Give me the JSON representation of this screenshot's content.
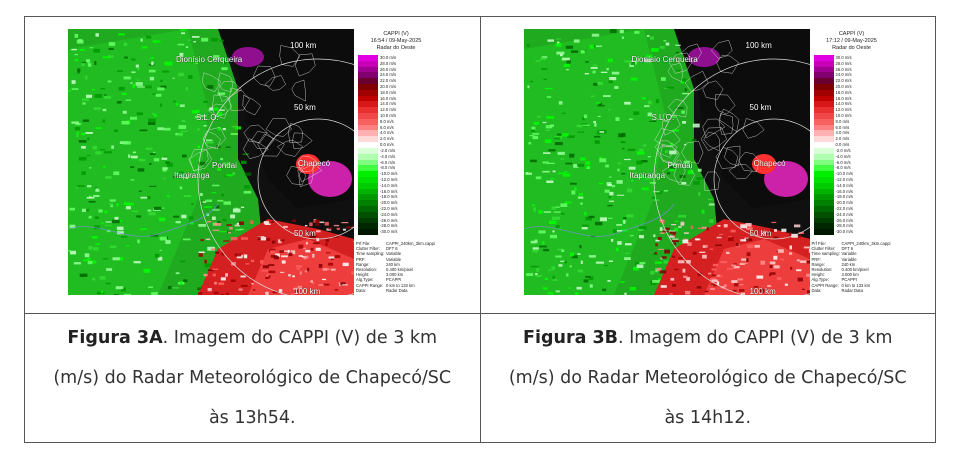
{
  "figures": [
    {
      "id": "A",
      "radar": {
        "title_line1": "CAPPI (V)",
        "title_line2": "16:54 / 09-May-2025",
        "title_line3": "Radar do Oeste",
        "rings": [
          "100 km",
          "50 km",
          "50 km",
          "100 km"
        ],
        "places": [
          "Dionísio Cerqueira",
          "S.L.O.",
          "Pondai",
          "Itapiranga",
          "Chapecó"
        ],
        "meta": [
          [
            "Prf File:",
            "CAPPI_240km_3km.cappi"
          ],
          [
            "Clutter Filter:",
            "DFT 6"
          ],
          [
            "Time sampling:",
            "Variable"
          ],
          [
            "PRF:",
            "Variable"
          ],
          [
            "Range:",
            "240 km"
          ],
          [
            "Resolution:",
            "0.400 km/pixel"
          ],
          [
            "Height:",
            "3.000 km"
          ],
          [
            "Alg.Type:",
            "PCAPPI"
          ],
          [
            "CAPPI Range:",
            "0 km to 133 km"
          ],
          [
            "Data:",
            "Radar Data"
          ]
        ]
      },
      "caption": {
        "bold": "Figura 3A",
        "text": ". Imagem do CAPPI (V) de 3 km (m/s) do Radar Meteorológico de Chapecó/SC às 13h54."
      }
    },
    {
      "id": "B",
      "radar": {
        "title_line1": "CAPPI (V)",
        "title_line2": "17:12 / 09-May-2025",
        "title_line3": "Radar do Oeste",
        "rings": [
          "100 km",
          "50 km",
          "50 km",
          "100 km"
        ],
        "places": [
          "Dionísio Cerqueira",
          "S.L.O.",
          "Pondai",
          "Itapiranga",
          "Chapecó"
        ],
        "meta": [
          [
            "Prf File:",
            "CAPPI_240km_3km.cappi"
          ],
          [
            "Clutter Filter:",
            "DFT 6"
          ],
          [
            "Time sampling:",
            "Variable"
          ],
          [
            "PRF:",
            "Variable"
          ],
          [
            "Range:",
            "240 km"
          ],
          [
            "Resolution:",
            "0.400 km/pixel"
          ],
          [
            "Height:",
            "3.000 km"
          ],
          [
            "Alg.Type:",
            "PCAPPI"
          ],
          [
            "CAPPI Range:",
            "0 km to 133 km"
          ],
          [
            "Data:",
            "Radar Data"
          ]
        ]
      },
      "caption": {
        "bold": "Figura 3B",
        "text": ". Imagem do CAPPI (V) de 3 km (m/s) do Radar Meteorológico de Chapecó/SC às 14h12."
      }
    }
  ],
  "velocity_scale": [
    "30.0 m/s",
    "28.0 m/s",
    "26.0 m/s",
    "24.0 m/s",
    "22.0 m/s",
    "20.0 m/s",
    "18.0 m/s",
    "16.0 m/s",
    "14.0 m/s",
    "12.0 m/s",
    "10.0 m/s",
    "8.0 m/s",
    "6.0 m/s",
    "4.0 m/s",
    "2.0 m/s",
    "0.0 m/s",
    "-2.0 m/s",
    "-4.0 m/s",
    "-6.0 m/s",
    "-8.0 m/s",
    "-10.0 m/s",
    "-12.0 m/s",
    "-14.0 m/s",
    "-16.0 m/s",
    "-18.0 m/s",
    "-20.0 m/s",
    "-22.0 m/s",
    "-24.0 m/s",
    "-26.0 m/s",
    "-28.0 m/s",
    "-30.0 m/s"
  ],
  "velocity_colors": [
    "#e000e0",
    "#c800b8",
    "#a00090",
    "#800070",
    "#6a0030",
    "#800000",
    "#a00000",
    "#c00000",
    "#d81818",
    "#e83030",
    "#f04848",
    "#f86060",
    "#ff8080",
    "#ffb0b0",
    "#ffd8d8",
    "#ffffff",
    "#d8ffd8",
    "#b0ffb0",
    "#80ff80",
    "#40ff40",
    "#00f000",
    "#00e000",
    "#00cc00",
    "#00b400",
    "#009a00",
    "#008000",
    "#006800",
    "#005000",
    "#003c00",
    "#002800",
    "#001800"
  ]
}
